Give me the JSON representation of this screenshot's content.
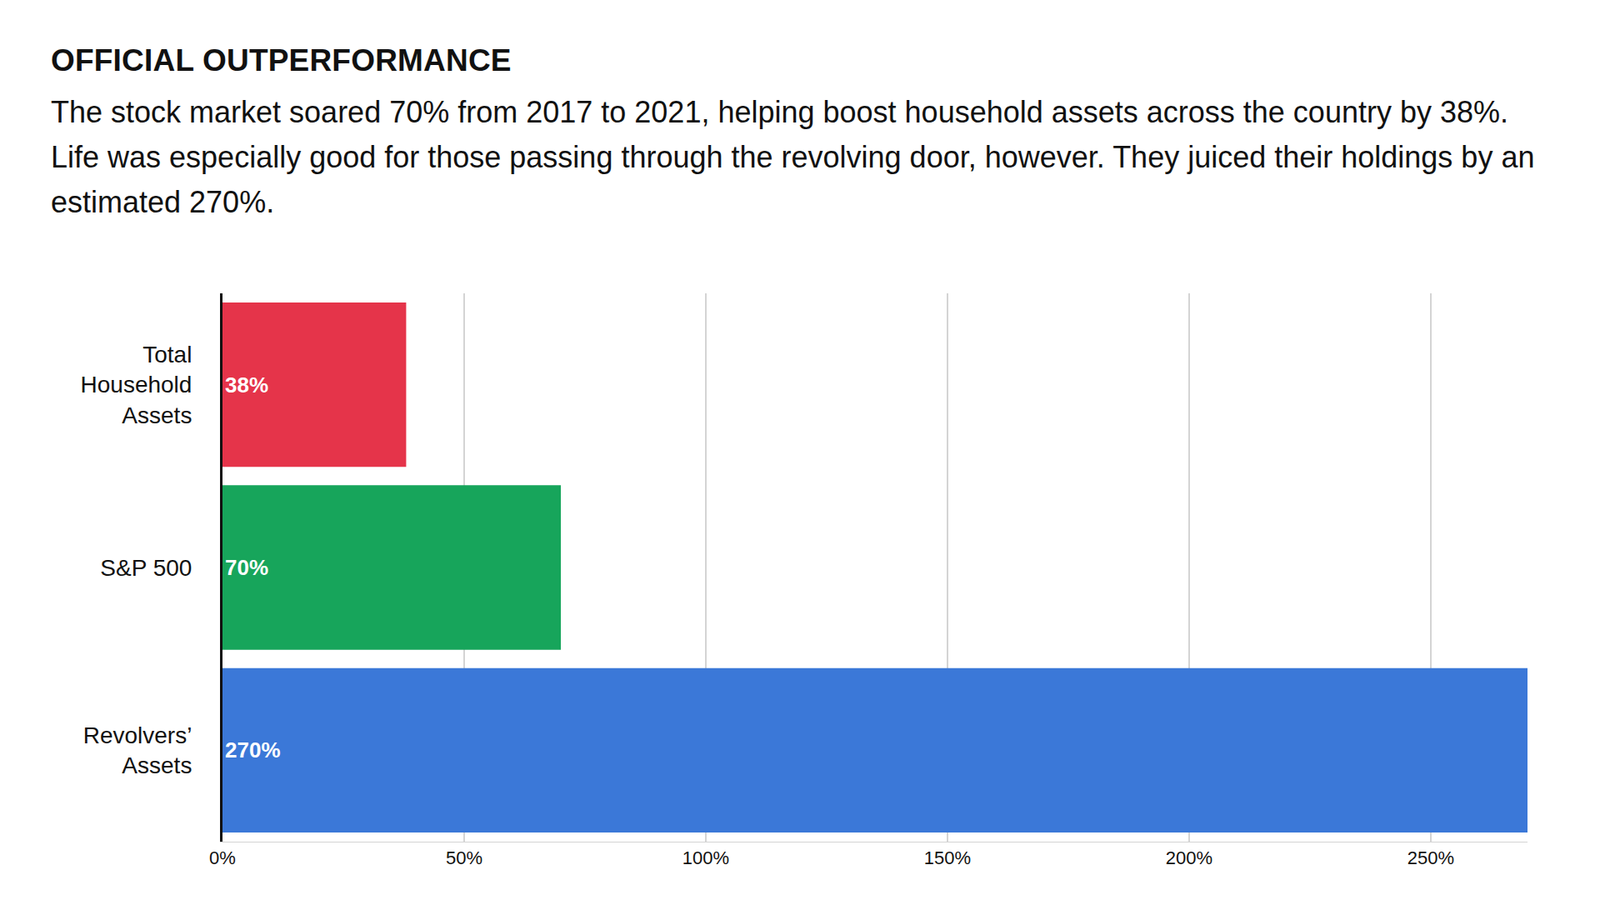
{
  "chart_data": {
    "type": "bar",
    "orientation": "horizontal",
    "title": "OFFICIAL OUTPERFORMANCE",
    "subtitle": "The stock market soared 70% from 2017 to 2021, helping boost household assets across the country by 38%. Life was especially good for those passing through the revolving door, however. They juiced their holdings by an estimated 270%.",
    "categories": [
      "Total Household Assets",
      "S&P 500",
      "Revolvers’ Assets"
    ],
    "values": [
      38,
      70,
      270
    ],
    "value_labels": [
      "38%",
      "70%",
      "270%"
    ],
    "data_labels": true,
    "colors": [
      "#e5344a",
      "#17a55b",
      "#3b78d8"
    ],
    "xlim": [
      0,
      270
    ],
    "xticks": [
      {
        "value": 0,
        "label": "0%"
      },
      {
        "value": 50,
        "label": "50%"
      },
      {
        "value": 100,
        "label": "100%"
      },
      {
        "value": 150,
        "label": "150%"
      },
      {
        "value": 200,
        "label": "200%"
      },
      {
        "value": 250,
        "label": "250%"
      }
    ],
    "grid": true
  }
}
